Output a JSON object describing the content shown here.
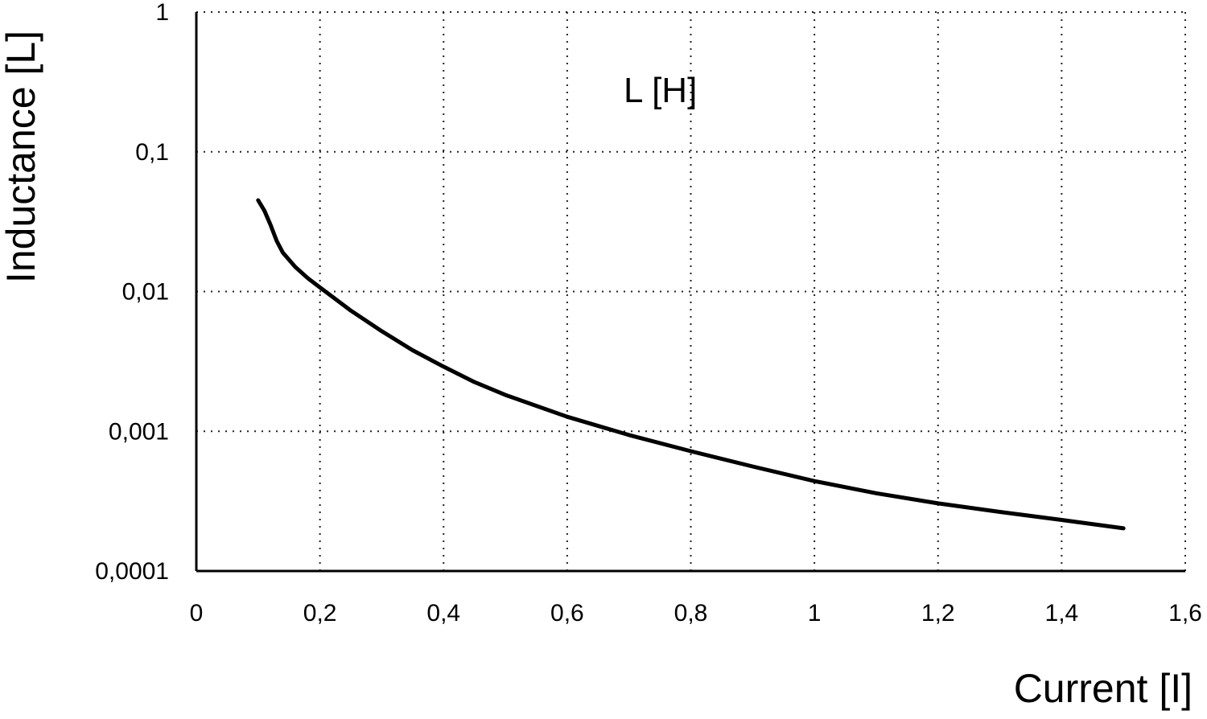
{
  "chart_data": {
    "type": "line",
    "title": "",
    "xlabel": "Current [I]",
    "ylabel": "Inductance [L]",
    "xlim": [
      0,
      1.6
    ],
    "ylim": [
      0.0001,
      1
    ],
    "yscale": "log",
    "grid": true,
    "grid_style": "dotted",
    "x_ticks": [
      "0",
      "0,2",
      "0,4",
      "0,6",
      "0,8",
      "1",
      "1,2",
      "1,4",
      "1,6"
    ],
    "y_ticks": [
      "1",
      "0,1",
      "0,01",
      "0,001",
      "0,0001"
    ],
    "series": [
      {
        "name": "L [H]",
        "color": "#000000",
        "points": [
          {
            "x": 0.1,
            "y": 0.045
          },
          {
            "x": 0.11,
            "y": 0.038
          },
          {
            "x": 0.12,
            "y": 0.03
          },
          {
            "x": 0.13,
            "y": 0.023
          },
          {
            "x": 0.14,
            "y": 0.019
          },
          {
            "x": 0.16,
            "y": 0.015
          },
          {
            "x": 0.18,
            "y": 0.0125
          },
          {
            "x": 0.2,
            "y": 0.0107
          },
          {
            "x": 0.25,
            "y": 0.0073
          },
          {
            "x": 0.3,
            "y": 0.0052
          },
          {
            "x": 0.35,
            "y": 0.0038
          },
          {
            "x": 0.4,
            "y": 0.0029
          },
          {
            "x": 0.45,
            "y": 0.00225
          },
          {
            "x": 0.5,
            "y": 0.00182
          },
          {
            "x": 0.6,
            "y": 0.00127
          },
          {
            "x": 0.7,
            "y": 0.00094
          },
          {
            "x": 0.8,
            "y": 0.00072
          },
          {
            "x": 0.9,
            "y": 0.00056
          },
          {
            "x": 1.0,
            "y": 0.00044
          },
          {
            "x": 1.1,
            "y": 0.00036
          },
          {
            "x": 1.2,
            "y": 0.000305
          },
          {
            "x": 1.3,
            "y": 0.000265
          },
          {
            "x": 1.4,
            "y": 0.000232
          },
          {
            "x": 1.5,
            "y": 0.000202
          }
        ]
      }
    ]
  }
}
